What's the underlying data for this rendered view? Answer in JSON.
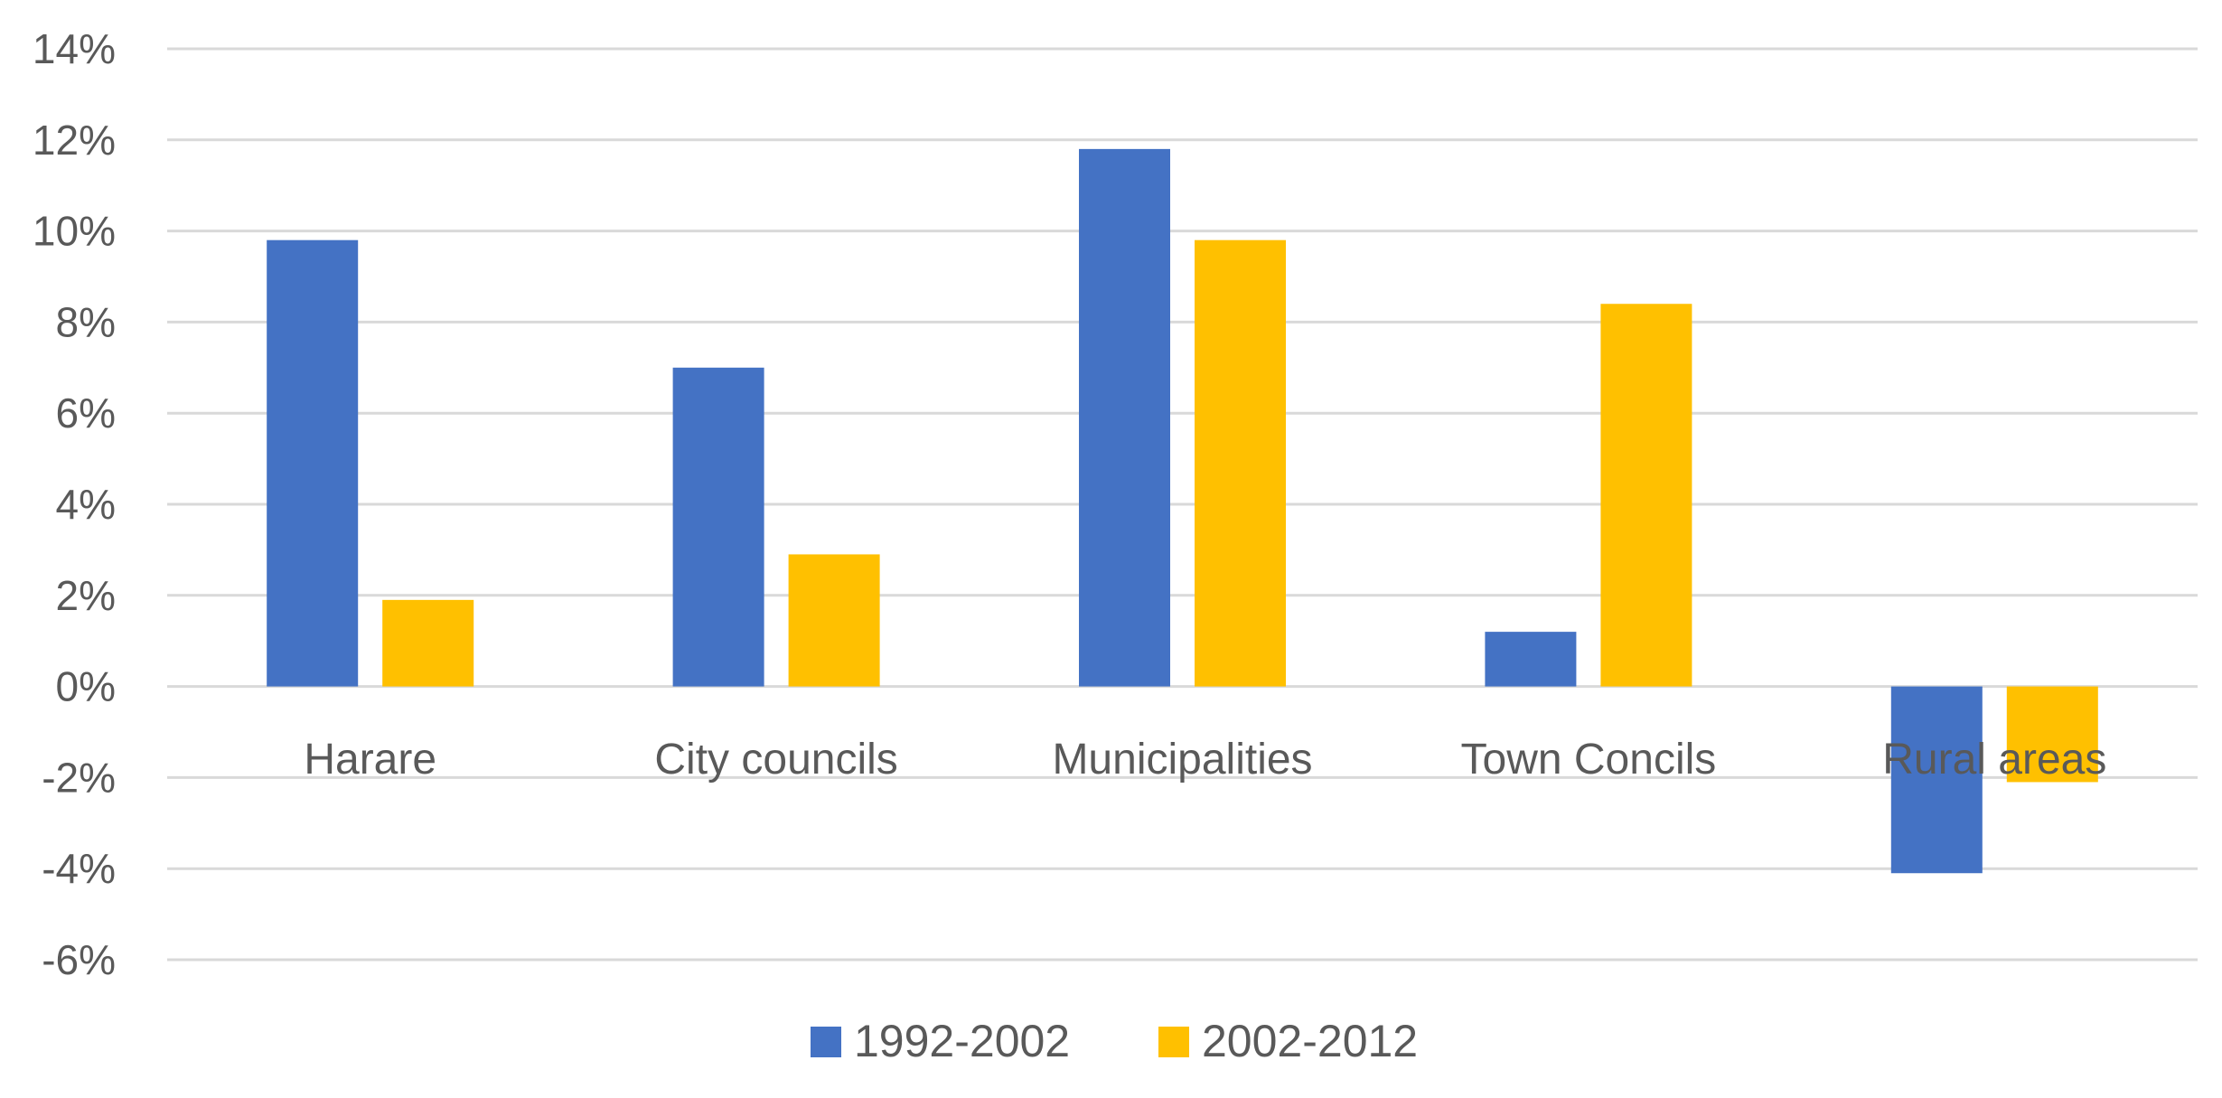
{
  "chart_data": {
    "type": "bar",
    "categories": [
      "Harare",
      "City councils",
      "Municipalities",
      "Town Concils",
      "Rural areas"
    ],
    "series": [
      {
        "name": "1992-2002",
        "values": [
          9.8,
          7.0,
          11.8,
          1.2,
          -4.1
        ],
        "color": "#4472c4"
      },
      {
        "name": "2002-2012",
        "values": [
          1.9,
          2.9,
          9.8,
          8.4,
          -2.1
        ],
        "color": "#ffc000"
      }
    ],
    "y_ticks": [
      "14%",
      "12%",
      "10%",
      "8%",
      "6%",
      "4%",
      "2%",
      "0%",
      "-2%",
      "-4%",
      "-6%"
    ],
    "ylim": [
      -6,
      14
    ],
    "y_unit": "%",
    "grid": true,
    "legend_position": "bottom-center",
    "title": "",
    "xlabel": "",
    "ylabel": ""
  }
}
